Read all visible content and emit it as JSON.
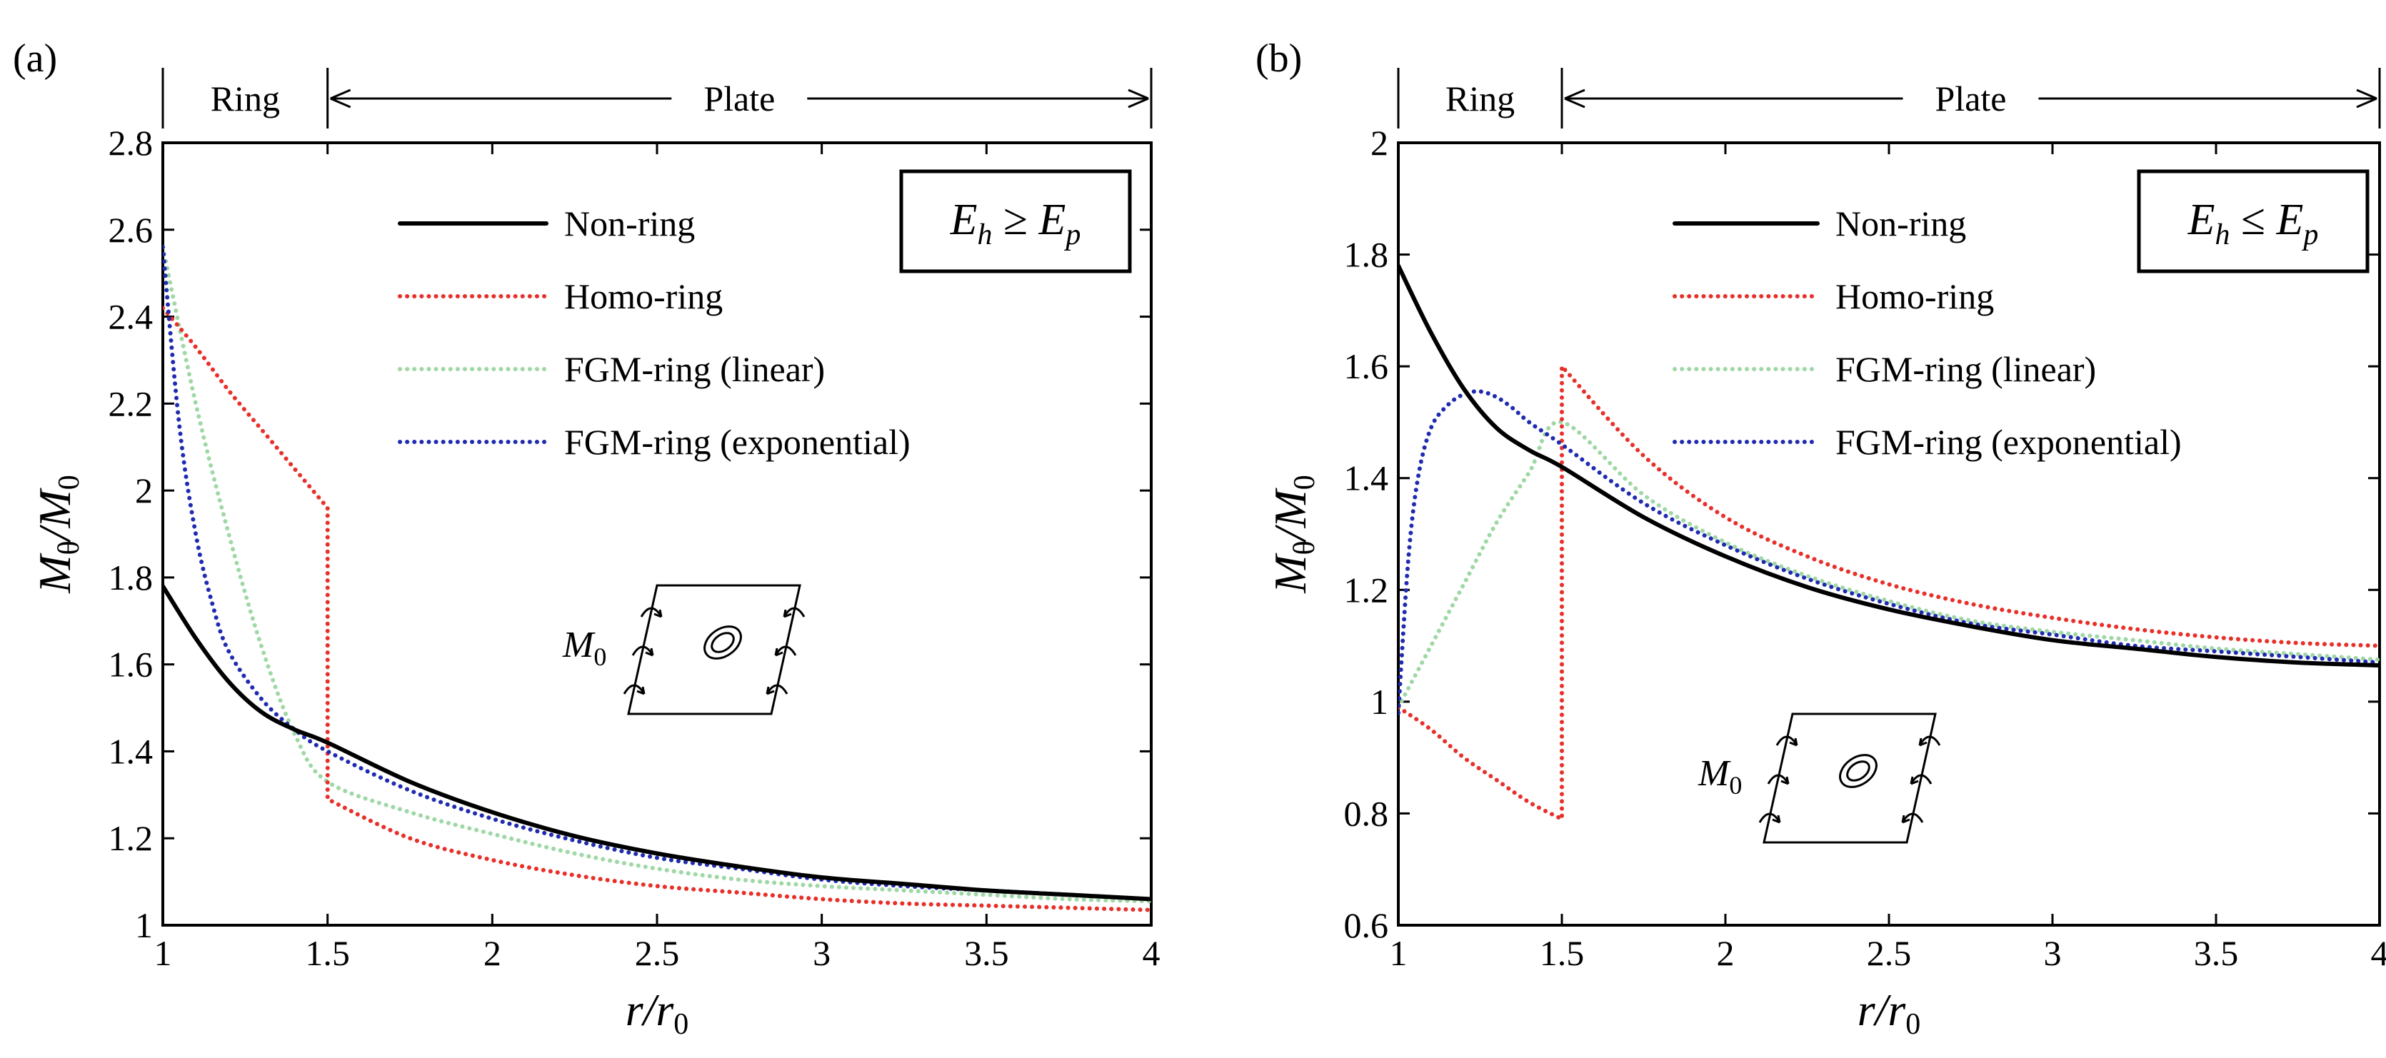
{
  "chart_data": [
    {
      "type": "line",
      "panel_label": "(a)",
      "condition": {
        "left": "E",
        "left_sub": "h",
        "operator": "≥",
        "right": "E",
        "right_sub": "p"
      },
      "regions": [
        {
          "label": "Ring",
          "x_range": [
            1,
            1.5
          ]
        },
        {
          "label": "Plate",
          "x_range": [
            1.5,
            4
          ]
        }
      ],
      "xlabel": {
        "main": "r",
        "sep": "/",
        "main2": "r",
        "sub": "0"
      },
      "ylabel": {
        "main": "M",
        "sub": "θ",
        "sep": "/",
        "main2": "M",
        "sub2": "0"
      },
      "xlim": [
        1,
        4
      ],
      "ylim": [
        1,
        2.8
      ],
      "xticks": [
        1,
        1.5,
        2,
        2.5,
        3,
        3.5,
        4
      ],
      "xtick_labels": [
        "1",
        "1.5",
        "2",
        "2.5",
        "3",
        "3.5",
        "4"
      ],
      "yticks": [
        1,
        1.2,
        1.4,
        1.6,
        1.8,
        2,
        2.2,
        2.4,
        2.6,
        2.8
      ],
      "ytick_labels": [
        "1",
        "1.2",
        "1.4",
        "1.6",
        "1.8",
        "2",
        "2.2",
        "2.4",
        "2.6",
        "2.8"
      ],
      "inset": {
        "label": "M",
        "sub": "0"
      },
      "series": [
        {
          "name": "Non-ring",
          "color": "#000000",
          "style": "solid",
          "points": [
            [
              1,
              1.78
            ],
            [
              1.1,
              1.66
            ],
            [
              1.2,
              1.56
            ],
            [
              1.3,
              1.49
            ],
            [
              1.4,
              1.45
            ],
            [
              1.5,
              1.42
            ],
            [
              1.75,
              1.33
            ],
            [
              2,
              1.26
            ],
            [
              2.25,
              1.205
            ],
            [
              2.5,
              1.165
            ],
            [
              2.75,
              1.135
            ],
            [
              3,
              1.11
            ],
            [
              3.25,
              1.095
            ],
            [
              3.5,
              1.08
            ],
            [
              3.75,
              1.07
            ],
            [
              4,
              1.06
            ]
          ]
        },
        {
          "name": "Homo-ring",
          "color": "#e8302a",
          "style": "dotted",
          "points": [
            [
              1,
              2.42
            ],
            [
              1.1,
              2.33
            ],
            [
              1.2,
              2.23
            ],
            [
              1.3,
              2.14
            ],
            [
              1.4,
              2.05
            ],
            [
              1.5,
              1.96
            ],
            [
              1.5,
              1.29
            ],
            [
              1.75,
              1.2
            ],
            [
              2,
              1.15
            ],
            [
              2.25,
              1.115
            ],
            [
              2.5,
              1.09
            ],
            [
              2.75,
              1.075
            ],
            [
              3,
              1.06
            ],
            [
              3.25,
              1.05
            ],
            [
              3.5,
              1.045
            ],
            [
              3.75,
              1.04
            ],
            [
              4,
              1.035
            ]
          ]
        },
        {
          "name": "FGM-ring (linear)",
          "color": "#9ed8a4",
          "style": "dotted",
          "points": [
            [
              1,
              2.56
            ],
            [
              1.1,
              2.2
            ],
            [
              1.2,
              1.9
            ],
            [
              1.3,
              1.64
            ],
            [
              1.4,
              1.44
            ],
            [
              1.5,
              1.33
            ],
            [
              1.75,
              1.26
            ],
            [
              2,
              1.21
            ],
            [
              2.25,
              1.165
            ],
            [
              2.5,
              1.13
            ],
            [
              2.75,
              1.105
            ],
            [
              3,
              1.09
            ],
            [
              3.25,
              1.08
            ],
            [
              3.5,
              1.07
            ],
            [
              3.75,
              1.06
            ],
            [
              4,
              1.055
            ]
          ]
        },
        {
          "name": "FGM-ring (exponential)",
          "color": "#1f2bb0",
          "style": "dotted",
          "points": [
            [
              1,
              2.56
            ],
            [
              1.05,
              2.15
            ],
            [
              1.1,
              1.9
            ],
            [
              1.15,
              1.74
            ],
            [
              1.2,
              1.63
            ],
            [
              1.3,
              1.52
            ],
            [
              1.4,
              1.45
            ],
            [
              1.5,
              1.4
            ],
            [
              1.75,
              1.31
            ],
            [
              2,
              1.245
            ],
            [
              2.25,
              1.195
            ],
            [
              2.5,
              1.155
            ],
            [
              2.75,
              1.13
            ],
            [
              3,
              1.105
            ],
            [
              3.25,
              1.09
            ],
            [
              3.5,
              1.08
            ],
            [
              3.75,
              1.07
            ],
            [
              4,
              1.06
            ]
          ]
        }
      ]
    },
    {
      "type": "line",
      "panel_label": "(b)",
      "condition": {
        "left": "E",
        "left_sub": "h",
        "operator": "≤",
        "right": "E",
        "right_sub": "p"
      },
      "regions": [
        {
          "label": "Ring",
          "x_range": [
            1,
            1.5
          ]
        },
        {
          "label": "Plate",
          "x_range": [
            1.5,
            4
          ]
        }
      ],
      "xlabel": {
        "main": "r",
        "sep": "/",
        "main2": "r",
        "sub": "0"
      },
      "ylabel": {
        "main": "M",
        "sub": "θ",
        "sep": "/",
        "main2": "M",
        "sub2": "0"
      },
      "xlim": [
        1,
        4
      ],
      "ylim": [
        0.6,
        2
      ],
      "xticks": [
        1,
        1.5,
        2,
        2.5,
        3,
        3.5,
        4
      ],
      "xtick_labels": [
        "1",
        "1.5",
        "2",
        "2.5",
        "3",
        "3.5",
        "4"
      ],
      "yticks": [
        0.6,
        0.8,
        1,
        1.2,
        1.4,
        1.6,
        1.8,
        2
      ],
      "ytick_labels": [
        "0.6",
        "0.8",
        "1",
        "1.2",
        "1.4",
        "1.6",
        "1.8",
        "2"
      ],
      "inset": {
        "label": "M",
        "sub": "0"
      },
      "series": [
        {
          "name": "Non-ring",
          "color": "#000000",
          "style": "solid",
          "points": [
            [
              1,
              1.78
            ],
            [
              1.1,
              1.66
            ],
            [
              1.2,
              1.56
            ],
            [
              1.3,
              1.49
            ],
            [
              1.4,
              1.45
            ],
            [
              1.5,
              1.42
            ],
            [
              1.75,
              1.33
            ],
            [
              2,
              1.26
            ],
            [
              2.25,
              1.205
            ],
            [
              2.5,
              1.165
            ],
            [
              2.75,
              1.135
            ],
            [
              3,
              1.11
            ],
            [
              3.25,
              1.095
            ],
            [
              3.5,
              1.08
            ],
            [
              3.75,
              1.07
            ],
            [
              4,
              1.065
            ]
          ]
        },
        {
          "name": "Homo-ring",
          "color": "#e8302a",
          "style": "dotted",
          "points": [
            [
              1,
              0.99
            ],
            [
              1.1,
              0.95
            ],
            [
              1.2,
              0.9
            ],
            [
              1.3,
              0.86
            ],
            [
              1.4,
              0.82
            ],
            [
              1.5,
              0.79
            ],
            [
              1.5,
              1.6
            ],
            [
              1.75,
              1.44
            ],
            [
              2,
              1.33
            ],
            [
              2.25,
              1.26
            ],
            [
              2.5,
              1.21
            ],
            [
              2.75,
              1.175
            ],
            [
              3,
              1.15
            ],
            [
              3.25,
              1.13
            ],
            [
              3.5,
              1.115
            ],
            [
              3.75,
              1.105
            ],
            [
              4,
              1.1
            ]
          ]
        },
        {
          "name": "FGM-ring (linear)",
          "color": "#9ed8a4",
          "style": "dotted",
          "points": [
            [
              1,
              0.99
            ],
            [
              1.1,
              1.1
            ],
            [
              1.2,
              1.21
            ],
            [
              1.3,
              1.32
            ],
            [
              1.4,
              1.41
            ],
            [
              1.5,
              1.5
            ],
            [
              1.75,
              1.37
            ],
            [
              2,
              1.285
            ],
            [
              2.25,
              1.225
            ],
            [
              2.5,
              1.18
            ],
            [
              2.75,
              1.145
            ],
            [
              3,
              1.125
            ],
            [
              3.25,
              1.11
            ],
            [
              3.5,
              1.095
            ],
            [
              3.75,
              1.085
            ],
            [
              4,
              1.075
            ]
          ]
        },
        {
          "name": "FGM-ring (exponential)",
          "color": "#1f2bb0",
          "style": "dotted",
          "points": [
            [
              1,
              0.98
            ],
            [
              1.03,
              1.25
            ],
            [
              1.06,
              1.4
            ],
            [
              1.1,
              1.49
            ],
            [
              1.15,
              1.53
            ],
            [
              1.2,
              1.55
            ],
            [
              1.25,
              1.555
            ],
            [
              1.3,
              1.545
            ],
            [
              1.35,
              1.525
            ],
            [
              1.4,
              1.5
            ],
            [
              1.5,
              1.46
            ],
            [
              1.75,
              1.355
            ],
            [
              2,
              1.28
            ],
            [
              2.25,
              1.22
            ],
            [
              2.5,
              1.175
            ],
            [
              2.75,
              1.14
            ],
            [
              3,
              1.12
            ],
            [
              3.25,
              1.1
            ],
            [
              3.5,
              1.09
            ],
            [
              3.75,
              1.08
            ],
            [
              4,
              1.07
            ]
          ]
        }
      ]
    }
  ]
}
